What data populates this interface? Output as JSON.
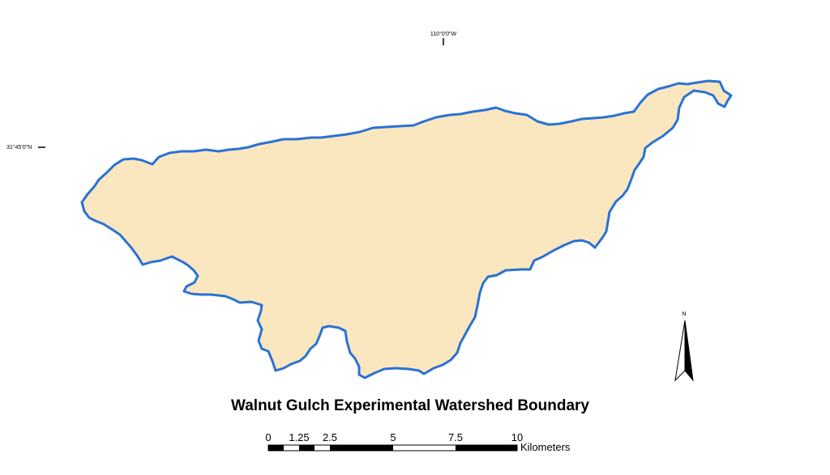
{
  "map": {
    "title": "Walnut Gulch Experimental Watershed Boundary",
    "graticule": {
      "longitude_label": "110°0'0\"W",
      "latitude_label": "31°45'0\"N"
    },
    "scale_bar": {
      "labels": [
        "0",
        "1.25",
        "2.5",
        "5",
        "7.5",
        "10"
      ],
      "unit": "Kilometers"
    },
    "north_arrow": {
      "label": "N"
    },
    "colors": {
      "fill": "#fbe7bf",
      "boundary": "#2a72d4",
      "background": "#ffffff"
    }
  }
}
